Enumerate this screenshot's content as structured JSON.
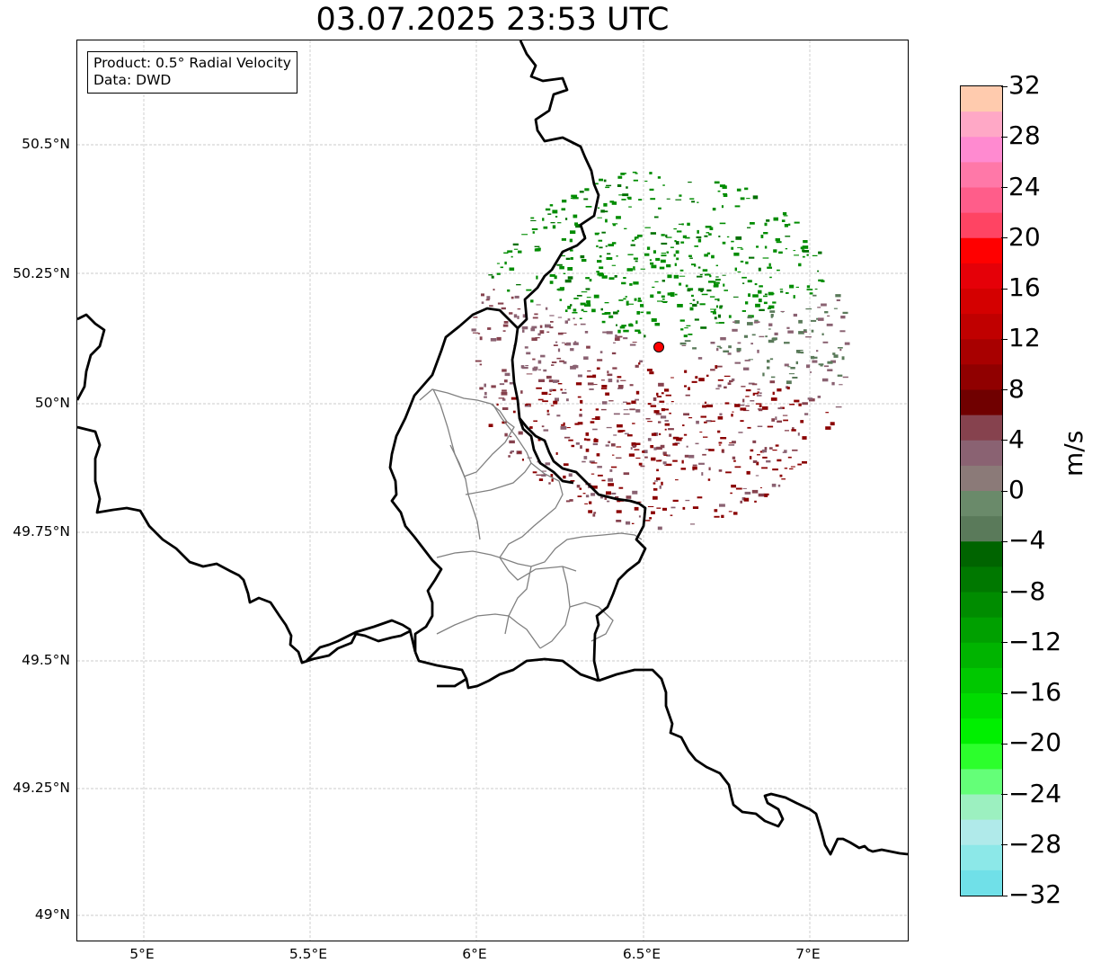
{
  "title": "03.07.2025 23:53 UTC",
  "info": {
    "product": "Product: 0.5° Radial Velocity",
    "source": "Data: DWD"
  },
  "axes": {
    "lat_ticks": [
      "50.5°N",
      "50.25°N",
      "50°N",
      "49.75°N",
      "49.5°N",
      "49.25°N",
      "49°N"
    ],
    "lon_ticks": [
      "5°E",
      "5.5°E",
      "6°E",
      "6.5°E",
      "7°E"
    ]
  },
  "colorbar": {
    "label": "m/s",
    "ticks": [
      "32",
      "28",
      "24",
      "20",
      "16",
      "12",
      "8",
      "4",
      "0",
      "−4",
      "−8",
      "−12",
      "−16",
      "−20",
      "−24",
      "−28",
      "−32"
    ],
    "colors": [
      "#ffcbae",
      "#ffa8c6",
      "#ff8ad0",
      "#ff78a8",
      "#ff5d8a",
      "#ff4463",
      "#ff0000",
      "#e50008",
      "#d40000",
      "#c00000",
      "#a80000",
      "#900000",
      "#700000",
      "#86424e",
      "#8a6272",
      "#8b7a78",
      "#6a8a6a",
      "#5a7a5a",
      "#006400",
      "#007800",
      "#008c00",
      "#00a000",
      "#00b400",
      "#00c800",
      "#00dc00",
      "#00f000",
      "#2cff2c",
      "#64ff78",
      "#9cf0c0",
      "#b0eaea",
      "#8ce8e8",
      "#70e0e8"
    ]
  },
  "radar": {
    "center_lon": 6.548,
    "center_lat": 50.111,
    "marker_color": "#ff0000"
  }
}
